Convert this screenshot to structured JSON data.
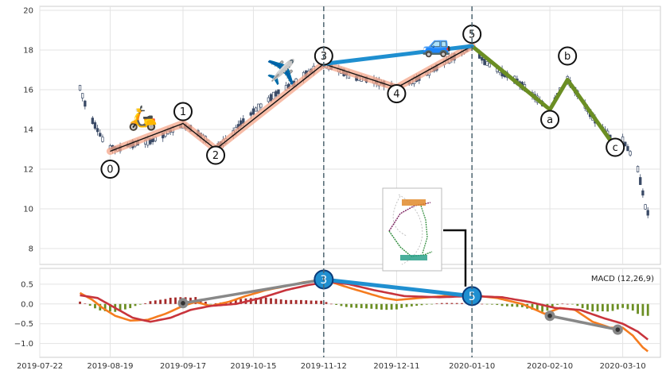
{
  "chart_data": [
    {
      "type": "candlestick",
      "ylim": [
        7.2,
        20.2
      ],
      "yticks": [
        8,
        10,
        12,
        14,
        16,
        18,
        20
      ],
      "ytick_labels": [
        "8",
        "10",
        "12",
        "14",
        "16",
        "18",
        "20"
      ],
      "xlim": [
        "2019-07-22",
        "2020-03-25"
      ],
      "xticks": [
        "2019-07-22",
        "2019-08-19",
        "2019-09-17",
        "2019-10-15",
        "2019-11-12",
        "2019-12-11",
        "2020-01-10",
        "2020-02-10",
        "2020-03-10"
      ],
      "grid": true,
      "price_path": [
        [
          "2019-08-07",
          16.1
        ],
        [
          "2019-08-10",
          14.9
        ],
        [
          "2019-08-13",
          14.2
        ],
        [
          "2019-08-16",
          13.5
        ],
        [
          "2019-08-19",
          13.1
        ],
        [
          "2019-08-22",
          13.0
        ],
        [
          "2019-08-26",
          13.2
        ],
        [
          "2019-08-30",
          13.3
        ],
        [
          "2019-09-04",
          13.4
        ],
        [
          "2019-09-09",
          13.7
        ],
        [
          "2019-09-13",
          14.0
        ],
        [
          "2019-09-17",
          14.2
        ],
        [
          "2019-09-21",
          14.0
        ],
        [
          "2019-09-25",
          13.6
        ],
        [
          "2019-09-30",
          13.1
        ],
        [
          "2019-10-05",
          13.5
        ],
        [
          "2019-10-10",
          14.3
        ],
        [
          "2019-10-15",
          14.9
        ],
        [
          "2019-10-20",
          15.4
        ],
        [
          "2019-10-25",
          15.9
        ],
        [
          "2019-10-31",
          16.3
        ],
        [
          "2019-11-05",
          16.8
        ],
        [
          "2019-11-12",
          17.3
        ],
        [
          "2019-11-18",
          17.0
        ],
        [
          "2019-11-24",
          16.6
        ],
        [
          "2019-11-30",
          16.5
        ],
        [
          "2019-12-06",
          16.3
        ],
        [
          "2019-12-11",
          16.1
        ],
        [
          "2019-12-17",
          16.4
        ],
        [
          "2019-12-23",
          16.8
        ],
        [
          "2019-12-29",
          17.3
        ],
        [
          "2020-01-05",
          17.8
        ],
        [
          "2020-01-10",
          18.2
        ],
        [
          "2020-01-15",
          17.4
        ],
        [
          "2020-01-20",
          17.0
        ],
        [
          "2020-01-26",
          16.6
        ],
        [
          "2020-02-01",
          16.0
        ],
        [
          "2020-02-06",
          15.4
        ],
        [
          "2020-02-10",
          15.0
        ],
        [
          "2020-02-14",
          16.0
        ],
        [
          "2020-02-17",
          16.5
        ],
        [
          "2020-02-21",
          15.8
        ],
        [
          "2020-02-25",
          15.0
        ],
        [
          "2020-02-29",
          14.3
        ],
        [
          "2020-03-04",
          13.8
        ],
        [
          "2020-03-07",
          13.1
        ],
        [
          "2020-03-10",
          13.5
        ],
        [
          "2020-03-13",
          12.8
        ],
        [
          "2020-03-16",
          12.0
        ],
        [
          "2020-03-18",
          10.8
        ],
        [
          "2020-03-19",
          10.1
        ],
        [
          "2020-03-20",
          9.8
        ]
      ],
      "waves": [
        {
          "label": "0",
          "date": "2019-08-19",
          "price": 12.9,
          "label_price": 12.0,
          "color": "#000000"
        },
        {
          "label": "1",
          "date": "2019-09-17",
          "price": 14.3,
          "label_price": 14.9,
          "color": "#000000"
        },
        {
          "label": "2",
          "date": "2019-09-30",
          "price": 13.0,
          "label_price": 12.7,
          "color": "#000000"
        },
        {
          "label": "3",
          "date": "2019-11-12",
          "price": 17.3,
          "label_price": 17.7,
          "color": "#000000"
        },
        {
          "label": "4",
          "date": "2019-12-11",
          "price": 16.1,
          "label_price": 15.8,
          "color": "#000000"
        },
        {
          "label": "5",
          "date": "2020-01-10",
          "price": 18.2,
          "label_price": 18.8,
          "color": "#000000"
        },
        {
          "label": "a",
          "date": "2020-02-10",
          "price": 15.0,
          "label_price": 14.5,
          "color": "#6b8e23"
        },
        {
          "label": "b",
          "date": "2020-02-17",
          "price": 16.5,
          "label_price": 17.7,
          "color": "#6b8e23"
        },
        {
          "label": "c",
          "date": "2020-03-07",
          "price": 13.1,
          "label_price": 13.1,
          "color": "#6b8e23"
        }
      ],
      "wave_3_to_5_link": true,
      "annotations": [
        {
          "icon": "scooter",
          "glyph": "🛵",
          "date": "2019-09-01",
          "price": 14.5
        },
        {
          "icon": "airplane",
          "glyph": "✈️",
          "date": "2019-10-26",
          "price": 16.8
        },
        {
          "icon": "car",
          "glyph": "🚙",
          "date": "2019-12-27",
          "price": 18.2
        }
      ],
      "vlines": [
        "2019-11-12",
        "2020-01-10"
      ]
    },
    {
      "type": "macd",
      "label": "MACD (12,26,9)",
      "ylim": [
        -1.35,
        0.9
      ],
      "yticks": [
        -1.0,
        -0.5,
        0.0,
        0.5
      ],
      "ytick_labels": [
        "−1.0",
        "−0.5",
        "0.0",
        "0.5"
      ],
      "macd_line": [
        [
          "2019-08-07",
          0.28
        ],
        [
          "2019-08-12",
          0.1
        ],
        [
          "2019-08-16",
          -0.1
        ],
        [
          "2019-08-21",
          -0.3
        ],
        [
          "2019-08-27",
          -0.42
        ],
        [
          "2019-09-03",
          -0.4
        ],
        [
          "2019-09-10",
          -0.25
        ],
        [
          "2019-09-17",
          -0.05
        ],
        [
          "2019-09-22",
          0.05
        ],
        [
          "2019-09-28",
          -0.05
        ],
        [
          "2019-10-05",
          0.05
        ],
        [
          "2019-10-12",
          0.2
        ],
        [
          "2019-10-20",
          0.35
        ],
        [
          "2019-10-28",
          0.45
        ],
        [
          "2019-11-04",
          0.55
        ],
        [
          "2019-11-12",
          0.62
        ],
        [
          "2019-11-20",
          0.45
        ],
        [
          "2019-11-28",
          0.3
        ],
        [
          "2019-12-06",
          0.15
        ],
        [
          "2019-12-11",
          0.1
        ],
        [
          "2019-12-20",
          0.15
        ],
        [
          "2019-12-30",
          0.2
        ],
        [
          "2020-01-10",
          0.22
        ],
        [
          "2020-01-20",
          0.15
        ],
        [
          "2020-01-30",
          0.0
        ],
        [
          "2020-02-08",
          -0.25
        ],
        [
          "2020-02-14",
          -0.1
        ],
        [
          "2020-02-20",
          -0.15
        ],
        [
          "2020-02-27",
          -0.45
        ],
        [
          "2020-03-05",
          -0.6
        ],
        [
          "2020-03-10",
          -0.6
        ],
        [
          "2020-03-14",
          -0.8
        ],
        [
          "2020-03-18",
          -1.1
        ],
        [
          "2020-03-20",
          -1.2
        ]
      ],
      "signal_line": [
        [
          "2019-08-07",
          0.22
        ],
        [
          "2019-08-14",
          0.15
        ],
        [
          "2019-08-21",
          -0.1
        ],
        [
          "2019-08-28",
          -0.35
        ],
        [
          "2019-09-04",
          -0.45
        ],
        [
          "2019-09-12",
          -0.35
        ],
        [
          "2019-09-20",
          -0.15
        ],
        [
          "2019-09-28",
          -0.05
        ],
        [
          "2019-10-08",
          0.0
        ],
        [
          "2019-10-18",
          0.15
        ],
        [
          "2019-10-28",
          0.35
        ],
        [
          "2019-11-06",
          0.48
        ],
        [
          "2019-11-14",
          0.56
        ],
        [
          "2019-11-22",
          0.5
        ],
        [
          "2019-12-02",
          0.35
        ],
        [
          "2019-12-14",
          0.2
        ],
        [
          "2019-12-28",
          0.17
        ],
        [
          "2020-01-10",
          0.2
        ],
        [
          "2020-01-22",
          0.17
        ],
        [
          "2020-02-02",
          0.05
        ],
        [
          "2020-02-12",
          -0.1
        ],
        [
          "2020-02-22",
          -0.15
        ],
        [
          "2020-03-02",
          -0.35
        ],
        [
          "2020-03-10",
          -0.5
        ],
        [
          "2020-03-16",
          -0.7
        ],
        [
          "2020-03-20",
          -0.9
        ]
      ],
      "histogram": {
        "start": "2019-08-07",
        "end": "2020-03-20",
        "step_days": 2
      },
      "divergence_lines": [
        {
          "from": [
            "2019-09-17",
            0.02
          ],
          "to": [
            "2019-11-12",
            0.62
          ],
          "color": "#888888"
        },
        {
          "from": [
            "2019-11-12",
            0.62
          ],
          "to": [
            "2020-01-10",
            0.2
          ],
          "color": "#1f8fd0"
        },
        {
          "from": [
            "2020-02-10",
            -0.3
          ],
          "to": [
            "2020-03-08",
            -0.65
          ],
          "color": "#888888"
        }
      ],
      "markers": [
        {
          "label": "3",
          "date": "2019-11-12",
          "value": 0.62,
          "color": "#1f8fd0"
        },
        {
          "label": "5",
          "date": "2020-01-10",
          "value": 0.2,
          "color": "#1f8fd0"
        },
        {
          "label": "",
          "date": "2019-09-17",
          "value": 0.02,
          "color": "#888888"
        },
        {
          "label": "",
          "date": "2020-02-10",
          "value": -0.3,
          "color": "#888888"
        },
        {
          "label": "",
          "date": "2020-03-08",
          "value": -0.65,
          "color": "#888888"
        }
      ]
    }
  ],
  "inset": {
    "name": "pattern-thumbnail",
    "anchor_date": "2020-01-10"
  }
}
